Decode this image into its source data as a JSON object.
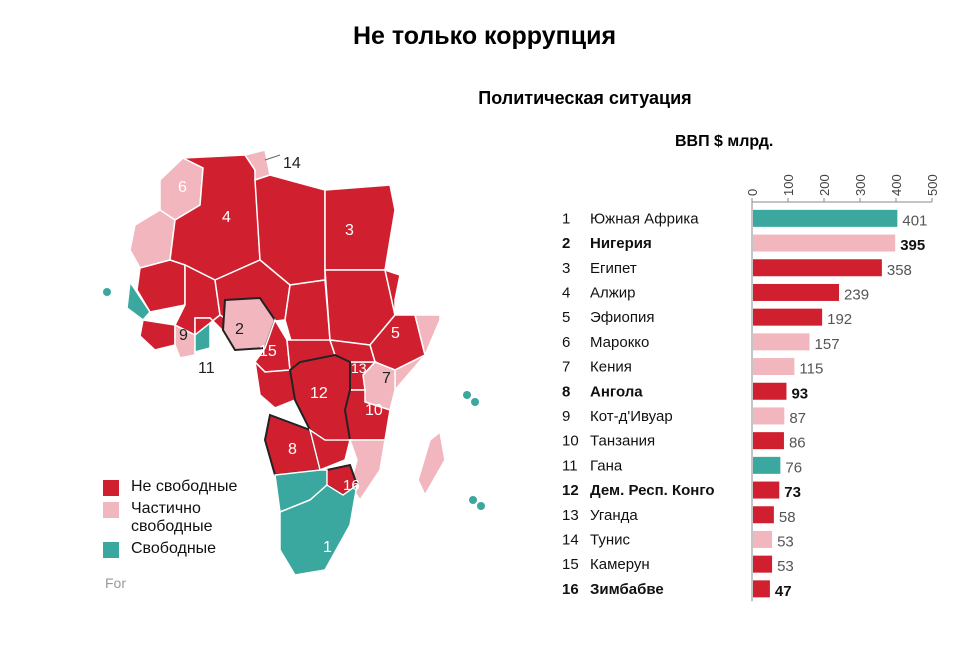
{
  "title": "Не только коррупция",
  "subtitle": "Политическая ситуация",
  "colors": {
    "not_free": "#d0202f",
    "partly_free": "#f2b6be",
    "free": "#3aa89f",
    "map_border": "#ffffff"
  },
  "legend": [
    {
      "label": "Не свободные",
      "color_key": "not_free"
    },
    {
      "label": "Частично\nсвободные",
      "color_key": "partly_free"
    },
    {
      "label": "Свободные",
      "color_key": "free"
    }
  ],
  "source_text": "For",
  "map_labels": [
    "1",
    "2",
    "3",
    "4",
    "5",
    "6",
    "7",
    "8",
    "9",
    "10",
    "11",
    "12",
    "13",
    "14",
    "15",
    "16"
  ],
  "chart_data": {
    "type": "bar",
    "orientation": "horizontal",
    "title": "Политическая ситуация",
    "xlabel": "ВВП $ млрд.",
    "xlim": [
      0,
      500
    ],
    "xticks": [
      "0",
      "100",
      "200",
      "300",
      "400",
      "500"
    ],
    "ranks": [
      "1",
      "2",
      "3",
      "4",
      "5",
      "6",
      "7",
      "8",
      "9",
      "10",
      "11",
      "12",
      "13",
      "14",
      "15",
      "16"
    ],
    "categories": [
      "Южная Африка",
      "Нигерия",
      "Египет",
      "Алжир",
      "Эфиопия",
      "Марокко",
      "Кения",
      "Ангола",
      "Кот-д'Ивуар",
      "Танзания",
      "Гана",
      "Дем. Респ. Конго",
      "Уганда",
      "Тунис",
      "Камерун",
      "Зимбабве"
    ],
    "values": [
      401,
      395,
      358,
      239,
      192,
      157,
      115,
      93,
      87,
      86,
      76,
      73,
      58,
      53,
      53,
      47
    ],
    "status": [
      "free",
      "partly_free",
      "not_free",
      "not_free",
      "not_free",
      "partly_free",
      "partly_free",
      "not_free",
      "partly_free",
      "not_free",
      "free",
      "not_free",
      "not_free",
      "partly_free",
      "not_free",
      "not_free"
    ],
    "emphasized": [
      false,
      true,
      false,
      false,
      false,
      false,
      false,
      true,
      false,
      false,
      false,
      true,
      false,
      false,
      false,
      true
    ]
  }
}
